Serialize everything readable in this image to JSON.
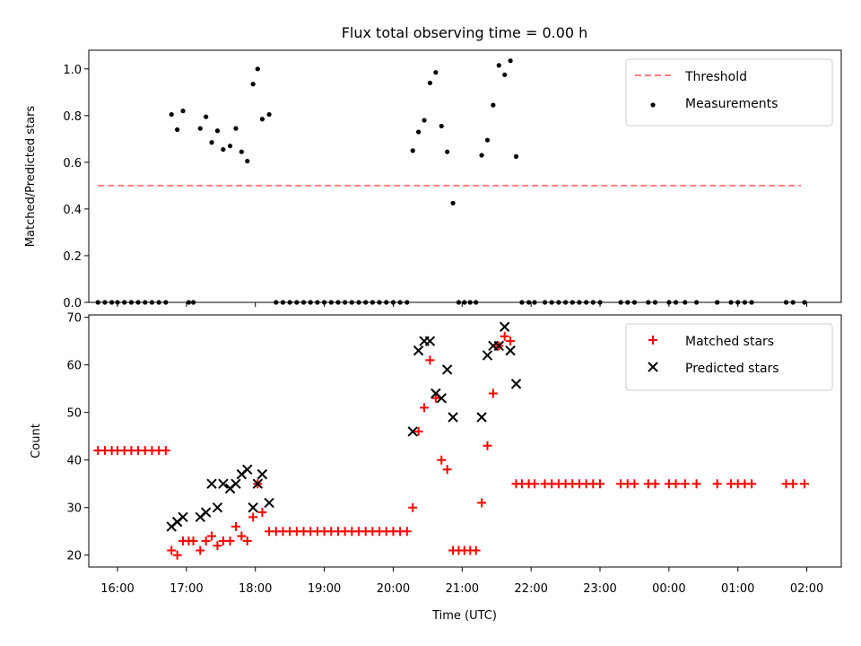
{
  "title": "Flux total observing time = 0.00 h",
  "xlabel": "Time (UTC)",
  "chart_data": [
    {
      "type": "scatter",
      "ylabel": "Matched/Predicted stars",
      "ylim": [
        0,
        1.08
      ],
      "yticks": [
        0.0,
        0.2,
        0.4,
        0.6,
        0.8,
        1.0
      ],
      "xlim": [
        "15:35",
        "02:30"
      ],
      "xticks": [
        "16:00",
        "17:00",
        "18:00",
        "19:00",
        "20:00",
        "21:00",
        "22:00",
        "23:00",
        "00:00",
        "01:00",
        "02:00"
      ],
      "legend_position": "top-right",
      "threshold": {
        "name": "Threshold",
        "value": 0.5,
        "x": [
          "15:43",
          "01:55"
        ],
        "color": "#ff7f7f"
      },
      "series": [
        {
          "name": "Measurements",
          "color": "#000000",
          "marker": "dot",
          "points": [
            [
              "15:43",
              0
            ],
            [
              "15:49",
              0
            ],
            [
              "15:55",
              0
            ],
            [
              "16:00",
              0
            ],
            [
              "16:06",
              0
            ],
            [
              "16:12",
              0
            ],
            [
              "16:18",
              0
            ],
            [
              "16:24",
              0
            ],
            [
              "16:30",
              0
            ],
            [
              "16:36",
              0
            ],
            [
              "16:42",
              0
            ],
            [
              "16:47",
              0.805
            ],
            [
              "16:52",
              0.74
            ],
            [
              "16:57",
              0.82
            ],
            [
              "17:02",
              0
            ],
            [
              "17:06",
              0
            ],
            [
              "17:12",
              0.745
            ],
            [
              "17:17",
              0.795
            ],
            [
              "17:22",
              0.685
            ],
            [
              "17:27",
              0.735
            ],
            [
              "17:32",
              0.655
            ],
            [
              "17:38",
              0.67
            ],
            [
              "17:43",
              0.745
            ],
            [
              "17:48",
              0.645
            ],
            [
              "17:53",
              0.605
            ],
            [
              "17:58",
              0.935
            ],
            [
              "18:02",
              1.0
            ],
            [
              "18:06",
              0.785
            ],
            [
              "18:12",
              0.805
            ],
            [
              "18:18",
              0
            ],
            [
              "18:24",
              0
            ],
            [
              "18:30",
              0
            ],
            [
              "18:36",
              0
            ],
            [
              "18:42",
              0
            ],
            [
              "18:48",
              0
            ],
            [
              "18:54",
              0
            ],
            [
              "19:00",
              0
            ],
            [
              "19:06",
              0
            ],
            [
              "19:12",
              0
            ],
            [
              "19:18",
              0
            ],
            [
              "19:24",
              0
            ],
            [
              "19:30",
              0
            ],
            [
              "19:36",
              0
            ],
            [
              "19:42",
              0
            ],
            [
              "19:48",
              0
            ],
            [
              "19:54",
              0
            ],
            [
              "20:00",
              0
            ],
            [
              "20:06",
              0
            ],
            [
              "20:12",
              0
            ],
            [
              "20:17",
              0.65
            ],
            [
              "20:22",
              0.73
            ],
            [
              "20:27",
              0.78
            ],
            [
              "20:32",
              0.94
            ],
            [
              "20:37",
              0.985
            ],
            [
              "20:42",
              0.755
            ],
            [
              "20:47",
              0.645
            ],
            [
              "20:52",
              0.425
            ],
            [
              "20:57",
              0
            ],
            [
              "21:02",
              0
            ],
            [
              "21:07",
              0
            ],
            [
              "21:12",
              0
            ],
            [
              "21:17",
              0.63
            ],
            [
              "21:22",
              0.695
            ],
            [
              "21:27",
              0.845
            ],
            [
              "21:32",
              1.015
            ],
            [
              "21:37",
              0.975
            ],
            [
              "21:42",
              1.035
            ],
            [
              "21:47",
              0.625
            ],
            [
              "21:52",
              0
            ],
            [
              "21:58",
              0
            ],
            [
              "22:03",
              0
            ],
            [
              "22:12",
              0
            ],
            [
              "22:18",
              0
            ],
            [
              "22:24",
              0
            ],
            [
              "22:30",
              0
            ],
            [
              "22:36",
              0
            ],
            [
              "22:42",
              0
            ],
            [
              "22:48",
              0
            ],
            [
              "22:54",
              0
            ],
            [
              "23:00",
              0
            ],
            [
              "23:18",
              0
            ],
            [
              "23:24",
              0
            ],
            [
              "23:30",
              0
            ],
            [
              "23:42",
              0
            ],
            [
              "23:48",
              0
            ],
            [
              "24:00",
              0
            ],
            [
              "24:06",
              0
            ],
            [
              "24:14",
              0
            ],
            [
              "24:24",
              0
            ],
            [
              "24:42",
              0
            ],
            [
              "24:54",
              0
            ],
            [
              "25:00",
              0
            ],
            [
              "25:06",
              0
            ],
            [
              "25:12",
              0
            ],
            [
              "25:42",
              0
            ],
            [
              "25:48",
              0
            ],
            [
              "25:58",
              0
            ]
          ]
        }
      ]
    },
    {
      "type": "scatter",
      "ylabel": "Count",
      "ylim": [
        17.5,
        70.5
      ],
      "yticks": [
        20,
        30,
        40,
        50,
        60,
        70
      ],
      "xlim": [
        "15:35",
        "02:30"
      ],
      "xticks": [
        "16:00",
        "17:00",
        "18:00",
        "19:00",
        "20:00",
        "21:00",
        "22:00",
        "23:00",
        "00:00",
        "01:00",
        "02:00"
      ],
      "legend_position": "top-right",
      "series": [
        {
          "name": "Matched stars",
          "color": "#ff0000",
          "marker": "plus",
          "points": [
            [
              "15:43",
              42
            ],
            [
              "15:49",
              42
            ],
            [
              "15:55",
              42
            ],
            [
              "16:00",
              42
            ],
            [
              "16:06",
              42
            ],
            [
              "16:12",
              42
            ],
            [
              "16:18",
              42
            ],
            [
              "16:24",
              42
            ],
            [
              "16:30",
              42
            ],
            [
              "16:36",
              42
            ],
            [
              "16:42",
              42
            ],
            [
              "16:47",
              21
            ],
            [
              "16:52",
              20
            ],
            [
              "16:57",
              23
            ],
            [
              "17:02",
              23
            ],
            [
              "17:06",
              23
            ],
            [
              "17:12",
              21
            ],
            [
              "17:17",
              23
            ],
            [
              "17:22",
              24
            ],
            [
              "17:27",
              22
            ],
            [
              "17:32",
              23
            ],
            [
              "17:38",
              23
            ],
            [
              "17:43",
              26
            ],
            [
              "17:48",
              24
            ],
            [
              "17:53",
              23
            ],
            [
              "17:58",
              28
            ],
            [
              "18:02",
              35
            ],
            [
              "18:06",
              29
            ],
            [
              "18:12",
              25
            ],
            [
              "18:18",
              25
            ],
            [
              "18:24",
              25
            ],
            [
              "18:30",
              25
            ],
            [
              "18:36",
              25
            ],
            [
              "18:42",
              25
            ],
            [
              "18:48",
              25
            ],
            [
              "18:54",
              25
            ],
            [
              "19:00",
              25
            ],
            [
              "19:06",
              25
            ],
            [
              "19:12",
              25
            ],
            [
              "19:18",
              25
            ],
            [
              "19:24",
              25
            ],
            [
              "19:30",
              25
            ],
            [
              "19:36",
              25
            ],
            [
              "19:42",
              25
            ],
            [
              "19:48",
              25
            ],
            [
              "19:54",
              25
            ],
            [
              "20:00",
              25
            ],
            [
              "20:06",
              25
            ],
            [
              "20:12",
              25
            ],
            [
              "20:17",
              30
            ],
            [
              "20:22",
              46
            ],
            [
              "20:27",
              51
            ],
            [
              "20:32",
              61
            ],
            [
              "20:37",
              53
            ],
            [
              "20:42",
              40
            ],
            [
              "20:47",
              38
            ],
            [
              "20:52",
              21
            ],
            [
              "20:57",
              21
            ],
            [
              "21:02",
              21
            ],
            [
              "21:07",
              21
            ],
            [
              "21:12",
              21
            ],
            [
              "21:17",
              31
            ],
            [
              "21:22",
              43
            ],
            [
              "21:27",
              54
            ],
            [
              "21:32",
              64
            ],
            [
              "21:37",
              66
            ],
            [
              "21:42",
              65
            ],
            [
              "21:47",
              35
            ],
            [
              "21:52",
              35
            ],
            [
              "21:58",
              35
            ],
            [
              "22:03",
              35
            ],
            [
              "22:12",
              35
            ],
            [
              "22:18",
              35
            ],
            [
              "22:24",
              35
            ],
            [
              "22:30",
              35
            ],
            [
              "22:36",
              35
            ],
            [
              "22:42",
              35
            ],
            [
              "22:48",
              35
            ],
            [
              "22:54",
              35
            ],
            [
              "23:00",
              35
            ],
            [
              "23:18",
              35
            ],
            [
              "23:24",
              35
            ],
            [
              "23:30",
              35
            ],
            [
              "23:42",
              35
            ],
            [
              "23:48",
              35
            ],
            [
              "24:00",
              35
            ],
            [
              "24:06",
              35
            ],
            [
              "24:14",
              35
            ],
            [
              "24:24",
              35
            ],
            [
              "24:42",
              35
            ],
            [
              "24:54",
              35
            ],
            [
              "25:00",
              35
            ],
            [
              "25:06",
              35
            ],
            [
              "25:12",
              35
            ],
            [
              "25:42",
              35
            ],
            [
              "25:48",
              35
            ],
            [
              "25:58",
              35
            ]
          ]
        },
        {
          "name": "Predicted stars",
          "color": "#000000",
          "marker": "cross",
          "points": [
            [
              "16:47",
              26
            ],
            [
              "16:52",
              27
            ],
            [
              "16:57",
              28
            ],
            [
              "17:12",
              28
            ],
            [
              "17:17",
              29
            ],
            [
              "17:22",
              35
            ],
            [
              "17:27",
              30
            ],
            [
              "17:32",
              35
            ],
            [
              "17:38",
              34
            ],
            [
              "17:43",
              35
            ],
            [
              "17:48",
              37
            ],
            [
              "17:53",
              38
            ],
            [
              "17:58",
              30
            ],
            [
              "18:02",
              35
            ],
            [
              "18:06",
              37
            ],
            [
              "18:12",
              31
            ],
            [
              "20:17",
              46
            ],
            [
              "20:22",
              63
            ],
            [
              "20:27",
              65
            ],
            [
              "20:32",
              65
            ],
            [
              "20:37",
              54
            ],
            [
              "20:42",
              53
            ],
            [
              "20:47",
              59
            ],
            [
              "20:52",
              49
            ],
            [
              "21:17",
              49
            ],
            [
              "21:22",
              62
            ],
            [
              "21:27",
              64
            ],
            [
              "21:32",
              64
            ],
            [
              "21:37",
              68
            ],
            [
              "21:42",
              63
            ],
            [
              "21:47",
              56
            ]
          ]
        }
      ]
    }
  ]
}
